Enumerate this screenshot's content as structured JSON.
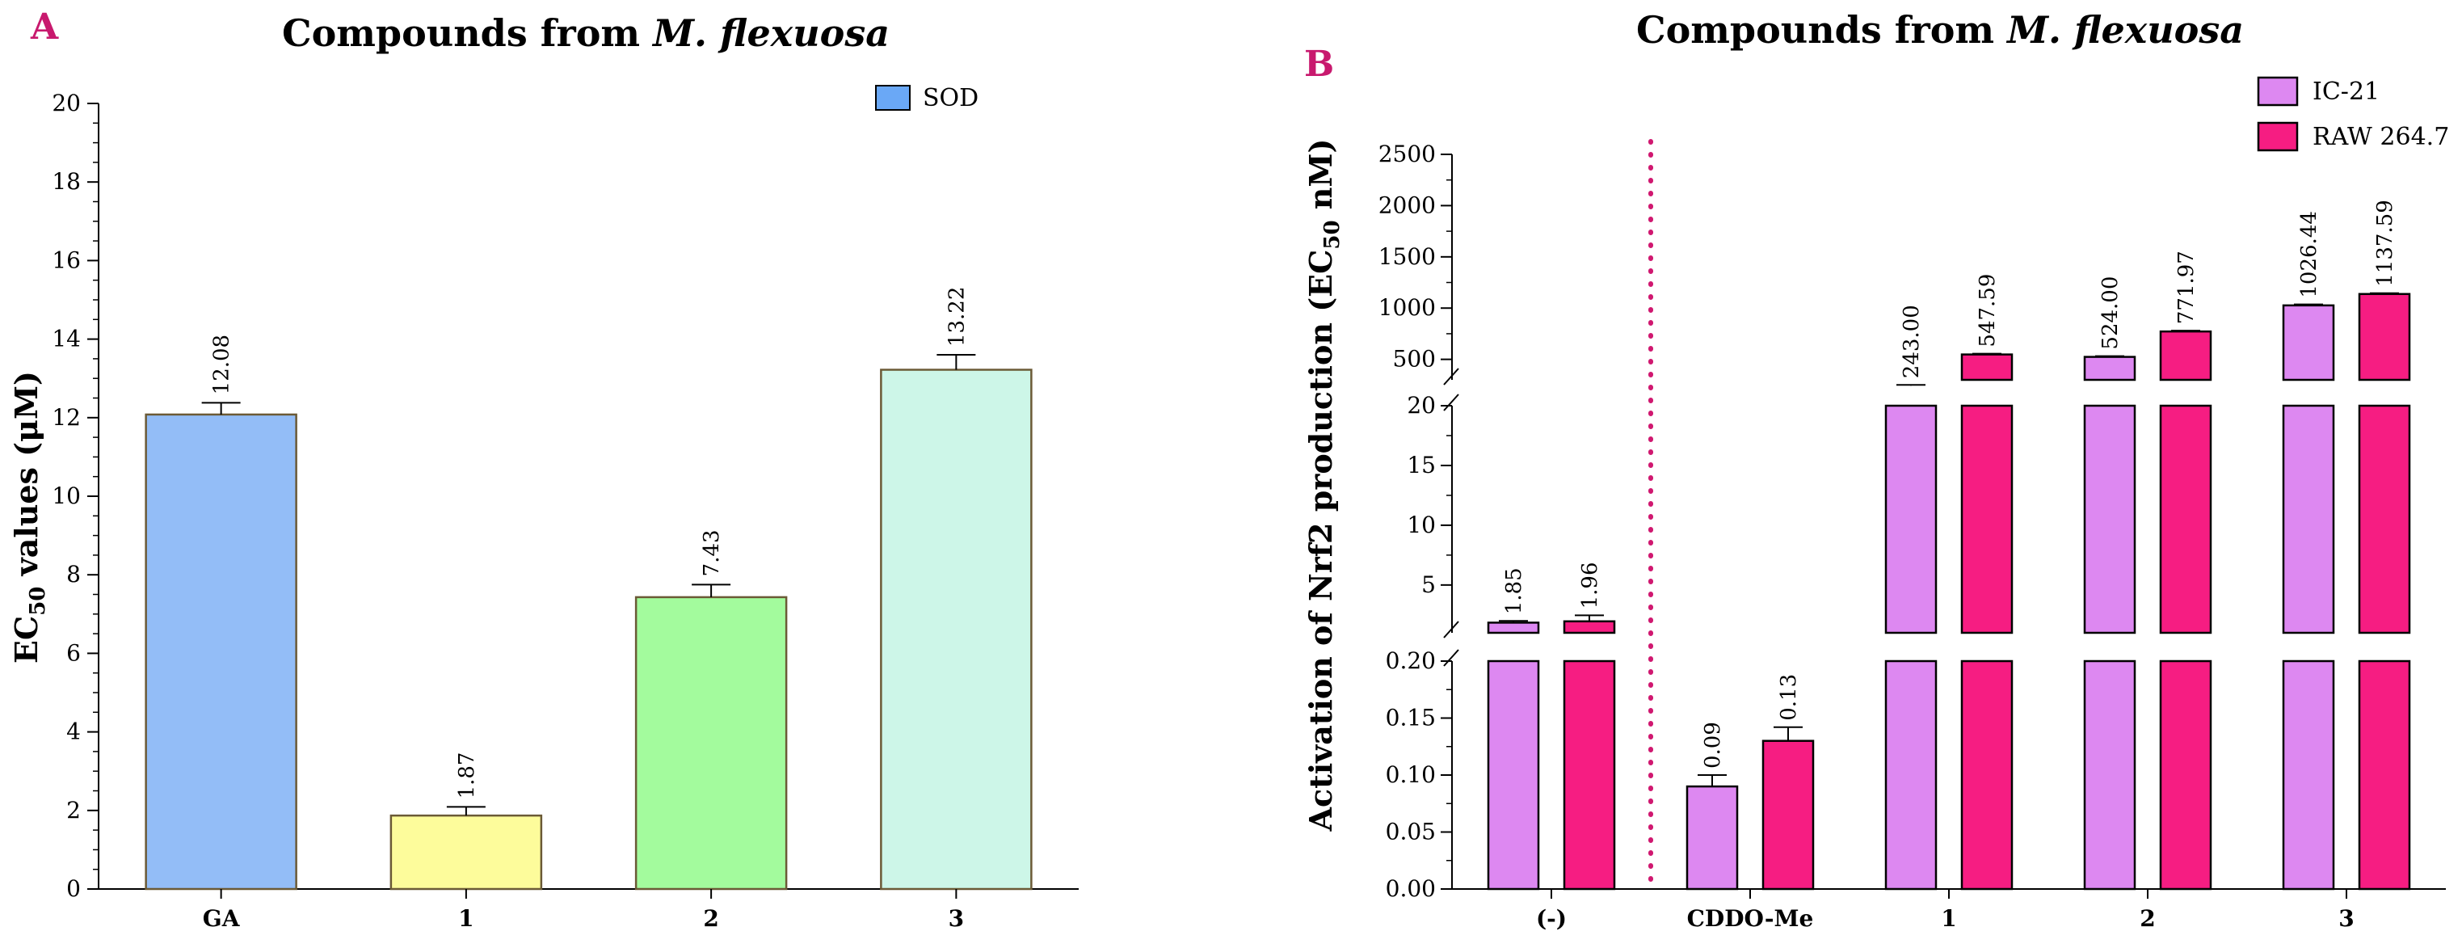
{
  "chart_data": [
    {
      "panel": "A",
      "type": "bar",
      "title_prefix": "Compounds from ",
      "title_species": "M. flexuosa",
      "ylabel_main": "EC",
      "ylabel_sub": "50",
      "ylabel_rest": " values (μM)",
      "xlabel": "",
      "ylim": [
        0,
        20
      ],
      "y_ticks": [
        "0",
        "2",
        "4",
        "6",
        "8",
        "10",
        "12",
        "14",
        "16",
        "18",
        "20"
      ],
      "categories": [
        "GA",
        "1",
        "2",
        "3"
      ],
      "series": [
        {
          "name": "SOD",
          "values": [
            12.08,
            1.87,
            7.43,
            13.22
          ],
          "errors": [
            0.3,
            0.22,
            0.32,
            0.38
          ],
          "labels": [
            "12.08",
            "1.87",
            "7.43",
            "13.22"
          ],
          "colors": [
            "#93bdf7",
            "#fdfc9b",
            "#a3fb9d",
            "#cdf6e8"
          ],
          "legend_color": "#6aa8f6"
        }
      ]
    },
    {
      "panel": "B",
      "type": "bar",
      "title_prefix": "Compounds from ",
      "title_species": "M. flexuosa",
      "ylabel_a": "Activation of Nrf2 production (EC",
      "ylabel_sub": "50",
      "ylabel_b": " nM)",
      "xlabel": "",
      "axis_segments": [
        {
          "min": 0,
          "max": 0.2,
          "ticks": [
            "0.00",
            "0.05",
            "0.10",
            "0.15",
            "0.20"
          ]
        },
        {
          "min": 1,
          "max": 20,
          "ticks": [
            "5",
            "10",
            "15",
            "20"
          ]
        },
        {
          "min": 300,
          "max": 2500,
          "ticks": [
            "500",
            "1000",
            "1500",
            "2000",
            "2500"
          ]
        }
      ],
      "categories": [
        "(-)",
        "CDDO-Me",
        "1",
        "2",
        "3"
      ],
      "separator_after": "(-)",
      "separator_color": "#d01870",
      "series": [
        {
          "name": "IC-21",
          "color": "#dd88f1",
          "values": [
            1.85,
            0.09,
            243.0,
            524.0,
            1026.44
          ],
          "errors": [
            0.15,
            0.01,
            8,
            8,
            10
          ],
          "labels": [
            "1.85",
            "0.09",
            "243.00",
            "524.00",
            "1026.44"
          ]
        },
        {
          "name": "RAW 264.7",
          "color": "#f61d82",
          "values": [
            1.96,
            0.13,
            547.59,
            771.97,
            1137.59
          ],
          "errors": [
            0.5,
            0.012,
            8,
            8,
            8
          ],
          "labels": [
            "1.96",
            "0.13",
            "547.59",
            "771.97",
            "1137.59"
          ]
        }
      ]
    }
  ],
  "panel_letters": {
    "a": "A",
    "b": "B",
    "color": "#c8196e"
  }
}
